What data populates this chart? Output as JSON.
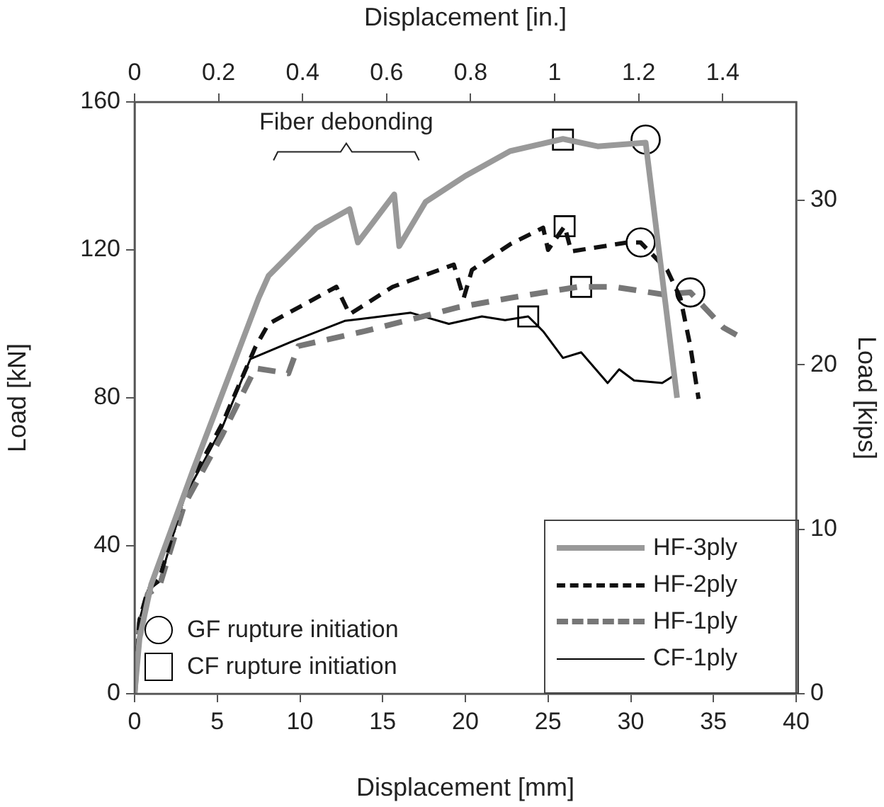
{
  "chart_data": {
    "type": "line",
    "xlabel": "Displacement [mm]",
    "ylabel": "Load [kN]",
    "y2label": "Load [kips]",
    "x2label": "Displacement [in.]",
    "xlim": [
      0,
      40
    ],
    "xticks": [
      0,
      5,
      10,
      15,
      20,
      25,
      30,
      35,
      40
    ],
    "ylim": [
      0,
      160
    ],
    "yticks": [
      0,
      40,
      80,
      120,
      160
    ],
    "y2lim": [
      0,
      35.97
    ],
    "y2ticks": [
      0,
      10,
      20,
      30
    ],
    "x2lim": [
      0,
      1.5748
    ],
    "x2ticks": [
      0,
      0.2,
      0.4,
      0.6,
      0.8,
      1,
      1.2,
      1.4
    ],
    "grid": false,
    "legend": "bottom right",
    "marker": "none",
    "annotations": [
      "Fiber debonding"
    ],
    "series": [
      {
        "name": "HF-3ply",
        "color": "#999999",
        "line_style": "solid",
        "x": [
          0,
          0.3,
          1.0,
          3.5,
          6.2,
          7.5,
          8.1,
          11,
          13,
          13.5,
          15.7,
          16,
          17.6,
          20,
          22.7,
          25.9,
          28,
          30.9,
          32.8
        ],
        "values": [
          0,
          15,
          29.5,
          60,
          91.7,
          107,
          113,
          126,
          131,
          122,
          135,
          121,
          133,
          140,
          146.7,
          150,
          148,
          149,
          80
        ]
      },
      {
        "name": "HF-2ply",
        "color": "#111111",
        "line_style": "dashed",
        "x": [
          0,
          0.3,
          0.8,
          1.5,
          3,
          5.3,
          7.3,
          8.1,
          12.2,
          13,
          15.6,
          19.3,
          19.9,
          20.4,
          22.7,
          24.7,
          25,
          26,
          26.4,
          29.8,
          30.6,
          32.2,
          33,
          33.6,
          34.1
        ],
        "values": [
          0,
          20,
          28,
          31,
          54,
          73,
          93.7,
          100,
          110,
          102.6,
          110,
          116,
          107,
          114.6,
          121.5,
          126,
          120,
          126.4,
          119.6,
          122,
          122,
          114.6,
          107,
          94,
          79.7
        ]
      },
      {
        "name": "HF-1ply",
        "color": "#777777",
        "line_style": "dashed",
        "x": [
          0,
          0.3,
          0.8,
          1.5,
          3,
          5.3,
          7.3,
          9.3,
          9.9,
          13.9,
          19.6,
          22.7,
          26.8,
          29,
          31.9,
          33.6,
          35.6,
          36.4
        ],
        "values": [
          0,
          19,
          27,
          29,
          51,
          70,
          88,
          86.6,
          94,
          98,
          104.5,
          107,
          110,
          110,
          108,
          108.5,
          99,
          97
        ]
      },
      {
        "name": "CF-1ply",
        "color": "#000000",
        "line_style": "solid",
        "x": [
          0,
          0.3,
          0.8,
          1.5,
          3,
          5.3,
          7,
          9.6,
          12.7,
          16.7,
          19,
          21,
          22.4,
          23.8,
          24.7,
          25.9,
          27,
          28.6,
          29.3,
          30.2,
          31.9,
          32.6
        ],
        "values": [
          0,
          20,
          28,
          30.3,
          53,
          72,
          90.5,
          95.4,
          100.8,
          103,
          100,
          102,
          101,
          102,
          98,
          90.8,
          92.3,
          84,
          87.7,
          84.7,
          84,
          86
        ]
      },
      {
        "name": "GF rupture initiation",
        "type": "scatter",
        "marker": "circle",
        "color": "#000000",
        "x": [
          30.9,
          30.6,
          33.6
        ],
        "values": [
          149.8,
          122,
          108.5
        ]
      },
      {
        "name": "CF rupture initiation",
        "type": "scatter",
        "marker": "square",
        "color": "#000000",
        "x": [
          25.9,
          26,
          27,
          23.8
        ],
        "values": [
          149.8,
          126.4,
          110,
          102
        ]
      }
    ]
  }
}
